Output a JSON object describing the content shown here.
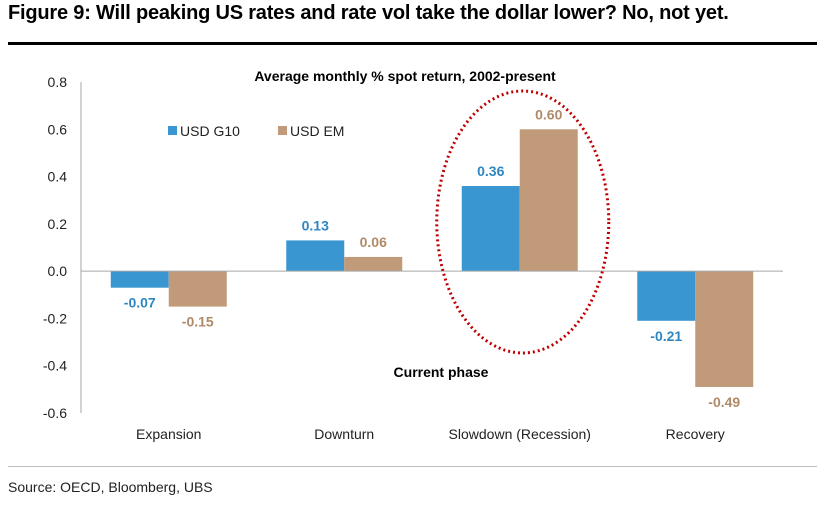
{
  "figure": {
    "title": "Figure 9: Will peaking US rates and rate vol take the dollar lower? No, not yet.",
    "source": "Source: OECD, Bloomberg, UBS"
  },
  "chart_data": {
    "type": "bar",
    "title": "Average monthly % spot return, 2002-present",
    "categories": [
      "Expansion",
      "Downturn",
      "Slowdown (Recession)",
      "Recovery"
    ],
    "series": [
      {
        "name": "USD G10",
        "values": [
          -0.07,
          0.13,
          0.36,
          -0.21
        ],
        "color": "#3a96d0",
        "label_color": "#2e86c1"
      },
      {
        "name": "USD EM",
        "values": [
          -0.15,
          0.06,
          0.6,
          -0.49
        ],
        "color": "#c09a79",
        "label_color": "#b08a68"
      }
    ],
    "y_ticks": [
      "0.8",
      "0.6",
      "0.4",
      "0.2",
      "0.0",
      "-0.2",
      "-0.4",
      "-0.6"
    ],
    "ylim": [
      -0.6,
      0.8
    ],
    "grid": false,
    "legend_position": "top-left",
    "annotation": {
      "text": "Current phase",
      "highlight_category": "Slowdown (Recession)",
      "highlight_color": "#c00000"
    }
  }
}
